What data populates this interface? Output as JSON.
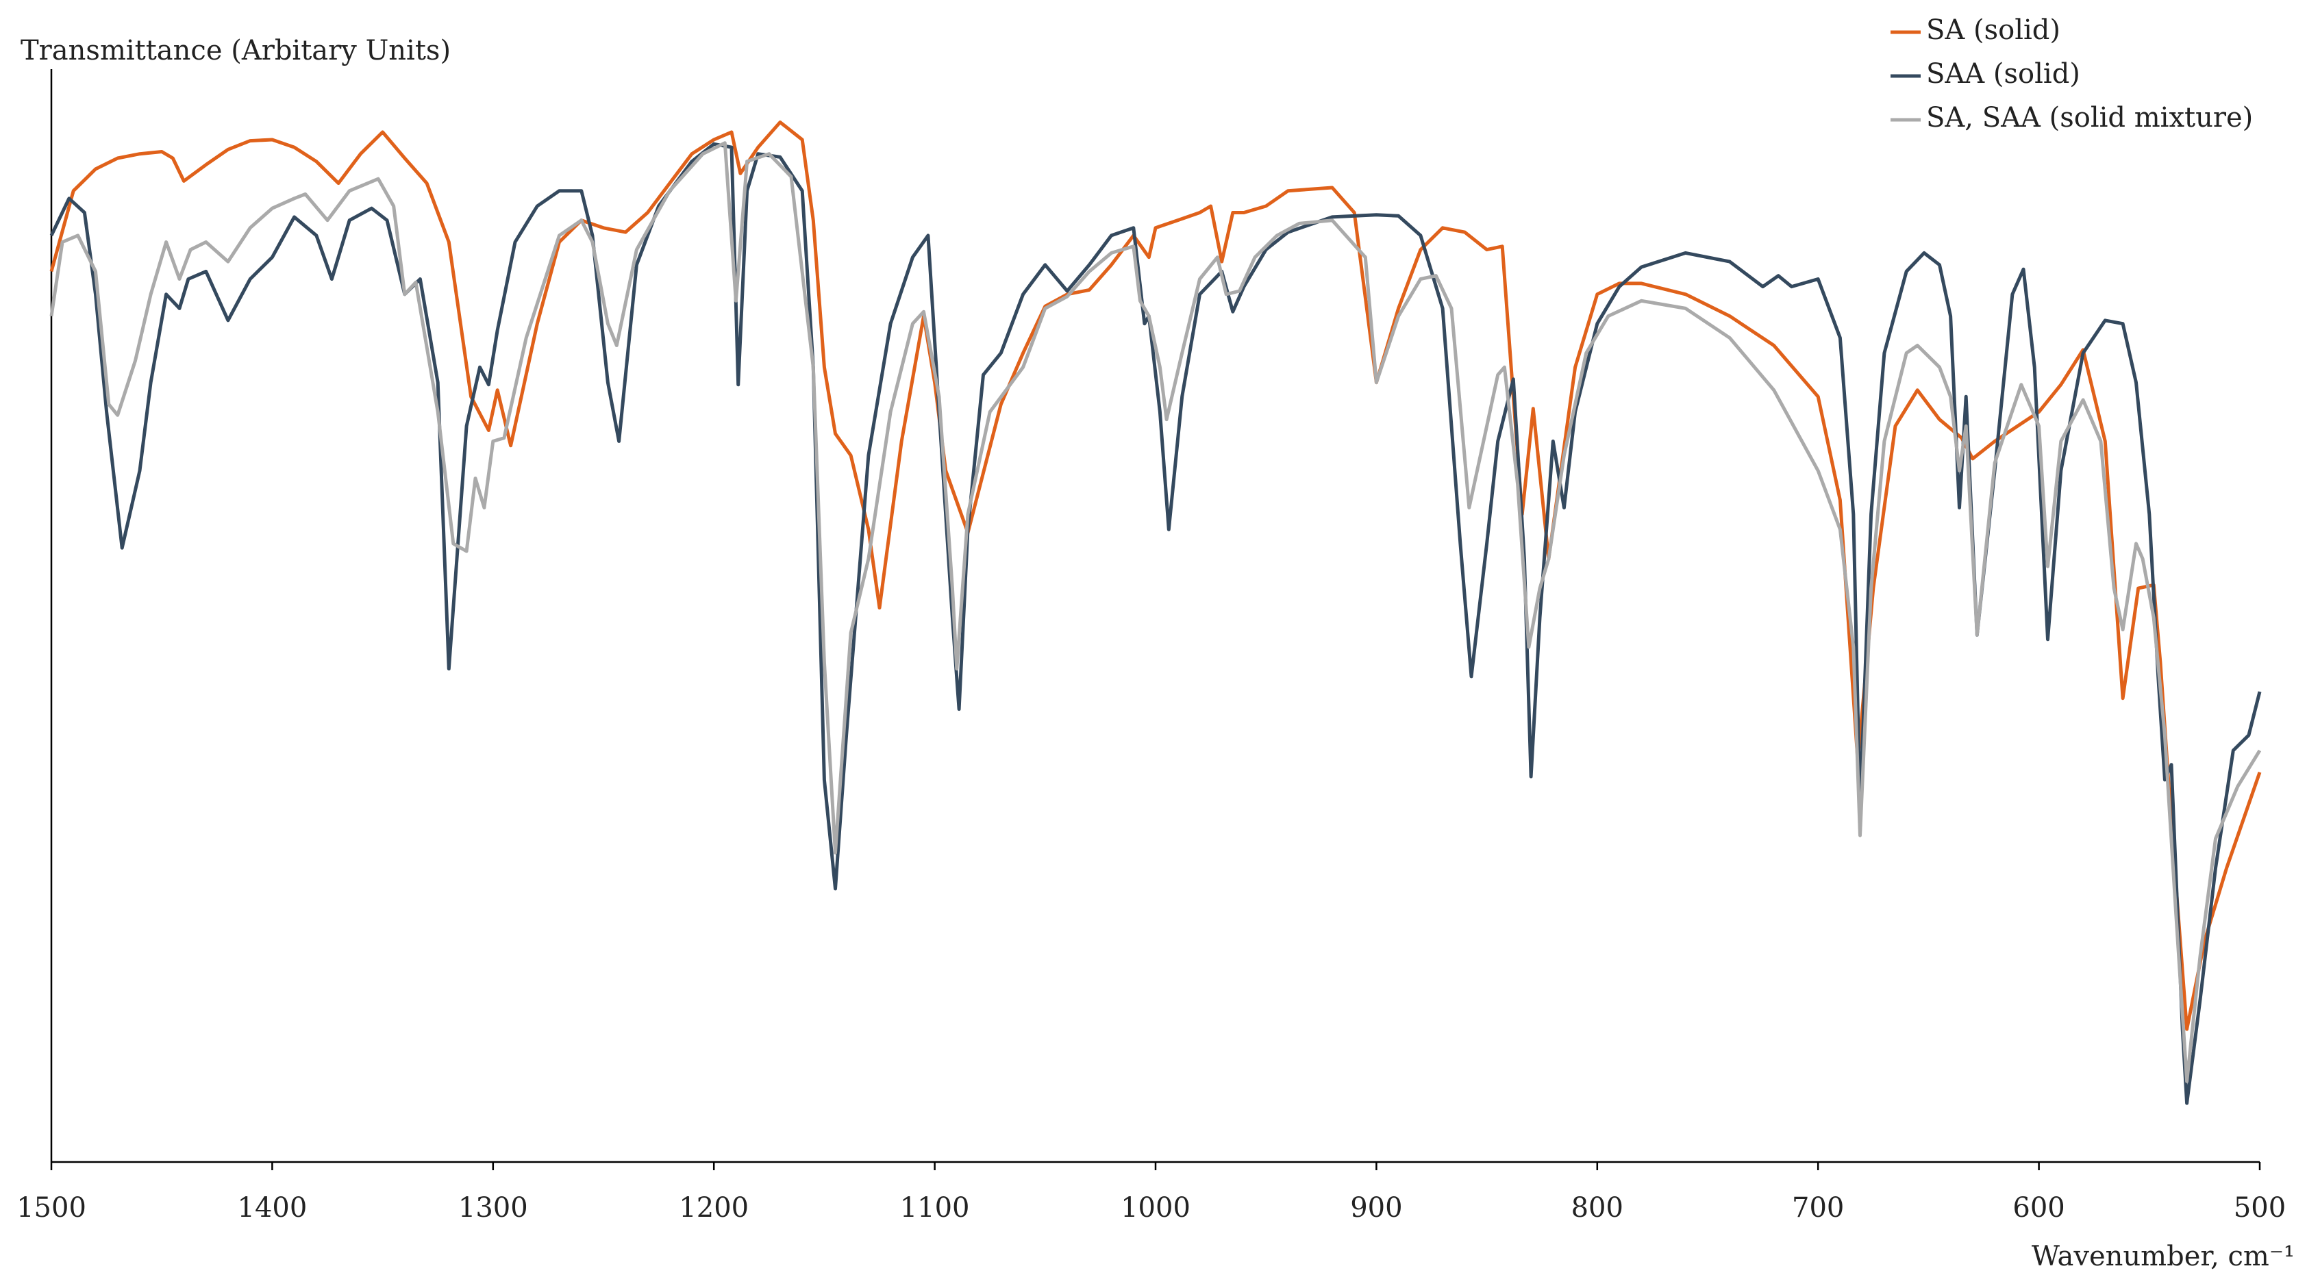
{
  "chart_data": {
    "type": "line",
    "ylabel": "Transmittance (Arbitary Units)",
    "xlabel": "Wavenumber, cm⁻¹",
    "xlim": [
      1500,
      500
    ],
    "xticks": [
      1500,
      1400,
      1300,
      1200,
      1100,
      1000,
      900,
      800,
      700,
      600,
      500
    ],
    "ylim": [
      0,
      100
    ],
    "legend": "top-right",
    "grid": false,
    "series": [
      {
        "name": "SA (solid)",
        "color": "#e0611a",
        "x": [
          1500,
          1490,
          1480,
          1470,
          1460,
          1450,
          1445,
          1440,
          1430,
          1420,
          1410,
          1400,
          1390,
          1380,
          1370,
          1360,
          1350,
          1340,
          1330,
          1320,
          1310,
          1302,
          1298,
          1292,
          1280,
          1270,
          1260,
          1250,
          1240,
          1230,
          1220,
          1210,
          1200,
          1192,
          1188,
          1180,
          1170,
          1160,
          1155,
          1150,
          1145,
          1138,
          1130,
          1125,
          1115,
          1105,
          1100,
          1095,
          1085,
          1070,
          1060,
          1050,
          1040,
          1030,
          1020,
          1010,
          1003,
          1000,
          990,
          980,
          975,
          970,
          965,
          960,
          950,
          940,
          920,
          910,
          900,
          890,
          880,
          870,
          860,
          850,
          843,
          838,
          834,
          829,
          822,
          810,
          800,
          790,
          780,
          760,
          740,
          720,
          700,
          690,
          682,
          675,
          665,
          655,
          645,
          635,
          630,
          620,
          600,
          590,
          580,
          570,
          562,
          555,
          548,
          545,
          540,
          533,
          525,
          515,
          500
        ],
        "values": [
          81.8,
          89.2,
          91.2,
          92.2,
          92.6,
          92.8,
          92.2,
          90.1,
          91.6,
          93.0,
          93.8,
          93.9,
          93.2,
          91.9,
          89.9,
          92.6,
          94.6,
          92.2,
          89.9,
          84.5,
          70.3,
          67.2,
          70.9,
          65.8,
          77.0,
          84.5,
          86.5,
          85.8,
          85.4,
          87.2,
          89.9,
          92.6,
          93.9,
          94.6,
          90.8,
          93.2,
          95.5,
          93.9,
          86.5,
          73.0,
          66.9,
          64.9,
          58.1,
          50.9,
          66.2,
          77.7,
          71.6,
          63.5,
          57.8,
          69.6,
          74.3,
          78.6,
          79.7,
          80.1,
          82.4,
          85.1,
          83.1,
          85.8,
          86.5,
          87.2,
          87.8,
          82.7,
          87.2,
          87.2,
          87.8,
          89.2,
          89.5,
          87.2,
          71.6,
          78.4,
          83.8,
          85.8,
          85.4,
          83.8,
          84.1,
          70.3,
          59.5,
          69.2,
          55.4,
          73.0,
          79.7,
          80.7,
          80.7,
          79.7,
          77.7,
          75.0,
          70.3,
          60.8,
          36.8,
          52.7,
          67.6,
          70.9,
          68.2,
          66.5,
          64.6,
          66.2,
          68.9,
          71.4,
          74.6,
          66.2,
          42.6,
          52.7,
          53.0,
          45.9,
          31.1,
          12.2,
          20.3,
          27.0,
          35.8
        ]
      },
      {
        "name": "SAA (solid)",
        "color": "#34495e",
        "x": [
          1500,
          1492,
          1485,
          1480,
          1475,
          1468,
          1460,
          1455,
          1448,
          1442,
          1438,
          1430,
          1420,
          1410,
          1400,
          1390,
          1380,
          1373,
          1365,
          1355,
          1348,
          1340,
          1333,
          1325,
          1320,
          1312,
          1306,
          1302,
          1298,
          1290,
          1280,
          1270,
          1260,
          1255,
          1248,
          1243,
          1235,
          1225,
          1210,
          1200,
          1192,
          1189,
          1185,
          1180,
          1170,
          1160,
          1155,
          1150,
          1145,
          1140,
          1130,
          1120,
          1110,
          1103,
          1098,
          1092,
          1089,
          1085,
          1078,
          1070,
          1060,
          1050,
          1040,
          1030,
          1020,
          1010,
          1005,
          1003,
          998,
          994,
          988,
          980,
          970,
          965,
          960,
          950,
          940,
          920,
          900,
          890,
          880,
          870,
          862,
          857,
          850,
          845,
          838,
          833,
          830,
          826,
          820,
          815,
          810,
          800,
          790,
          780,
          760,
          740,
          725,
          718,
          712,
          700,
          690,
          684,
          681,
          676,
          670,
          660,
          652,
          645,
          640,
          636,
          633,
          628,
          620,
          612,
          607,
          602,
          596,
          590,
          580,
          570,
          562,
          556,
          550,
          546,
          543,
          540,
          535,
          533,
          527,
          520,
          512,
          505,
          500
        ],
        "values": [
          85.1,
          88.5,
          87.2,
          79.7,
          68.9,
          56.4,
          63.5,
          71.6,
          79.7,
          78.4,
          81.1,
          81.8,
          77.3,
          81.1,
          83.1,
          86.8,
          85.1,
          81.1,
          86.5,
          87.6,
          86.5,
          79.7,
          81.1,
          71.6,
          45.3,
          67.6,
          73.0,
          71.4,
          76.4,
          84.5,
          87.8,
          89.2,
          89.2,
          85.1,
          71.6,
          66.2,
          82.4,
          87.8,
          91.9,
          93.5,
          93.2,
          71.4,
          89.2,
          92.6,
          92.3,
          89.2,
          73.0,
          35.1,
          25.1,
          39.2,
          64.9,
          77.0,
          83.1,
          85.1,
          68.9,
          50.0,
          41.6,
          58.1,
          72.3,
          74.3,
          79.7,
          82.4,
          80.0,
          82.4,
          85.1,
          85.8,
          77.0,
          77.7,
          68.9,
          58.1,
          70.3,
          79.7,
          81.8,
          78.1,
          80.4,
          83.8,
          85.4,
          86.8,
          87.0,
          86.9,
          85.1,
          78.4,
          56.8,
          44.6,
          56.8,
          66.2,
          71.9,
          55.4,
          35.4,
          50.0,
          66.2,
          60.1,
          68.9,
          77.0,
          80.4,
          82.2,
          83.5,
          82.7,
          80.4,
          81.4,
          80.4,
          81.1,
          75.7,
          59.5,
          32.4,
          59.5,
          74.3,
          81.8,
          83.5,
          82.4,
          77.7,
          60.1,
          70.3,
          48.4,
          63.5,
          79.7,
          82.0,
          73.0,
          48.0,
          63.5,
          74.3,
          77.3,
          77.0,
          71.6,
          59.5,
          44.6,
          35.1,
          36.5,
          12.2,
          5.4,
          14.9,
          27.0,
          37.8,
          39.2,
          43.2
        ]
      },
      {
        "name": "SA, SAA (solid mixture)",
        "color": "#aaaaaa",
        "x": [
          1500,
          1495,
          1488,
          1480,
          1474,
          1470,
          1462,
          1455,
          1448,
          1442,
          1437,
          1430,
          1420,
          1410,
          1400,
          1390,
          1385,
          1375,
          1365,
          1352,
          1345,
          1340,
          1335,
          1325,
          1318,
          1312,
          1308,
          1304,
          1300,
          1295,
          1285,
          1270,
          1260,
          1255,
          1248,
          1244,
          1235,
          1220,
          1205,
          1195,
          1190,
          1185,
          1175,
          1165,
          1155,
          1150,
          1145,
          1138,
          1130,
          1120,
          1110,
          1105,
          1098,
          1092,
          1090,
          1085,
          1075,
          1060,
          1050,
          1040,
          1030,
          1020,
          1010,
          1007,
          1003,
          998,
          995,
          988,
          980,
          972,
          968,
          962,
          955,
          945,
          935,
          920,
          905,
          900,
          890,
          880,
          873,
          866,
          858,
          850,
          845,
          842,
          836,
          831,
          826,
          822,
          815,
          805,
          795,
          780,
          760,
          740,
          720,
          700,
          690,
          684,
          681,
          676,
          670,
          660,
          655,
          645,
          640,
          636,
          633,
          628,
          620,
          608,
          600,
          596,
          590,
          580,
          572,
          566,
          562,
          556,
          553,
          548,
          543,
          538,
          533,
          527,
          520,
          510,
          500
        ],
        "values": [
          77.7,
          84.5,
          85.1,
          81.8,
          69.6,
          68.6,
          73.6,
          79.7,
          84.5,
          81.1,
          83.8,
          84.5,
          82.7,
          85.8,
          87.6,
          88.5,
          88.9,
          86.5,
          89.2,
          90.3,
          87.8,
          79.7,
          80.8,
          68.9,
          56.8,
          56.1,
          62.8,
          60.1,
          66.2,
          66.5,
          75.7,
          85.1,
          86.5,
          84.5,
          77.0,
          75.0,
          83.8,
          89.2,
          92.6,
          93.6,
          79.1,
          91.9,
          92.6,
          90.5,
          73.0,
          45.9,
          28.4,
          48.6,
          55.4,
          68.9,
          77.0,
          78.1,
          70.3,
          52.7,
          45.3,
          59.5,
          68.9,
          73.0,
          78.4,
          79.5,
          81.8,
          83.5,
          84.1,
          79.1,
          77.7,
          73.0,
          68.2,
          74.3,
          81.1,
          83.1,
          79.7,
          80.0,
          83.1,
          85.1,
          86.2,
          86.5,
          83.1,
          71.6,
          77.7,
          81.1,
          81.4,
          78.4,
          60.1,
          67.6,
          72.3,
          73.0,
          62.2,
          47.3,
          52.7,
          55.4,
          64.9,
          74.3,
          77.7,
          79.1,
          78.4,
          75.7,
          70.9,
          63.5,
          58.1,
          47.3,
          30.0,
          52.7,
          66.2,
          74.3,
          75.0,
          73.0,
          70.3,
          63.5,
          67.6,
          48.4,
          64.2,
          71.4,
          67.6,
          54.7,
          66.2,
          70.0,
          66.2,
          52.7,
          48.9,
          56.8,
          55.4,
          50.0,
          39.2,
          23.0,
          7.4,
          18.9,
          29.7,
          34.5,
          37.8
        ]
      }
    ]
  }
}
